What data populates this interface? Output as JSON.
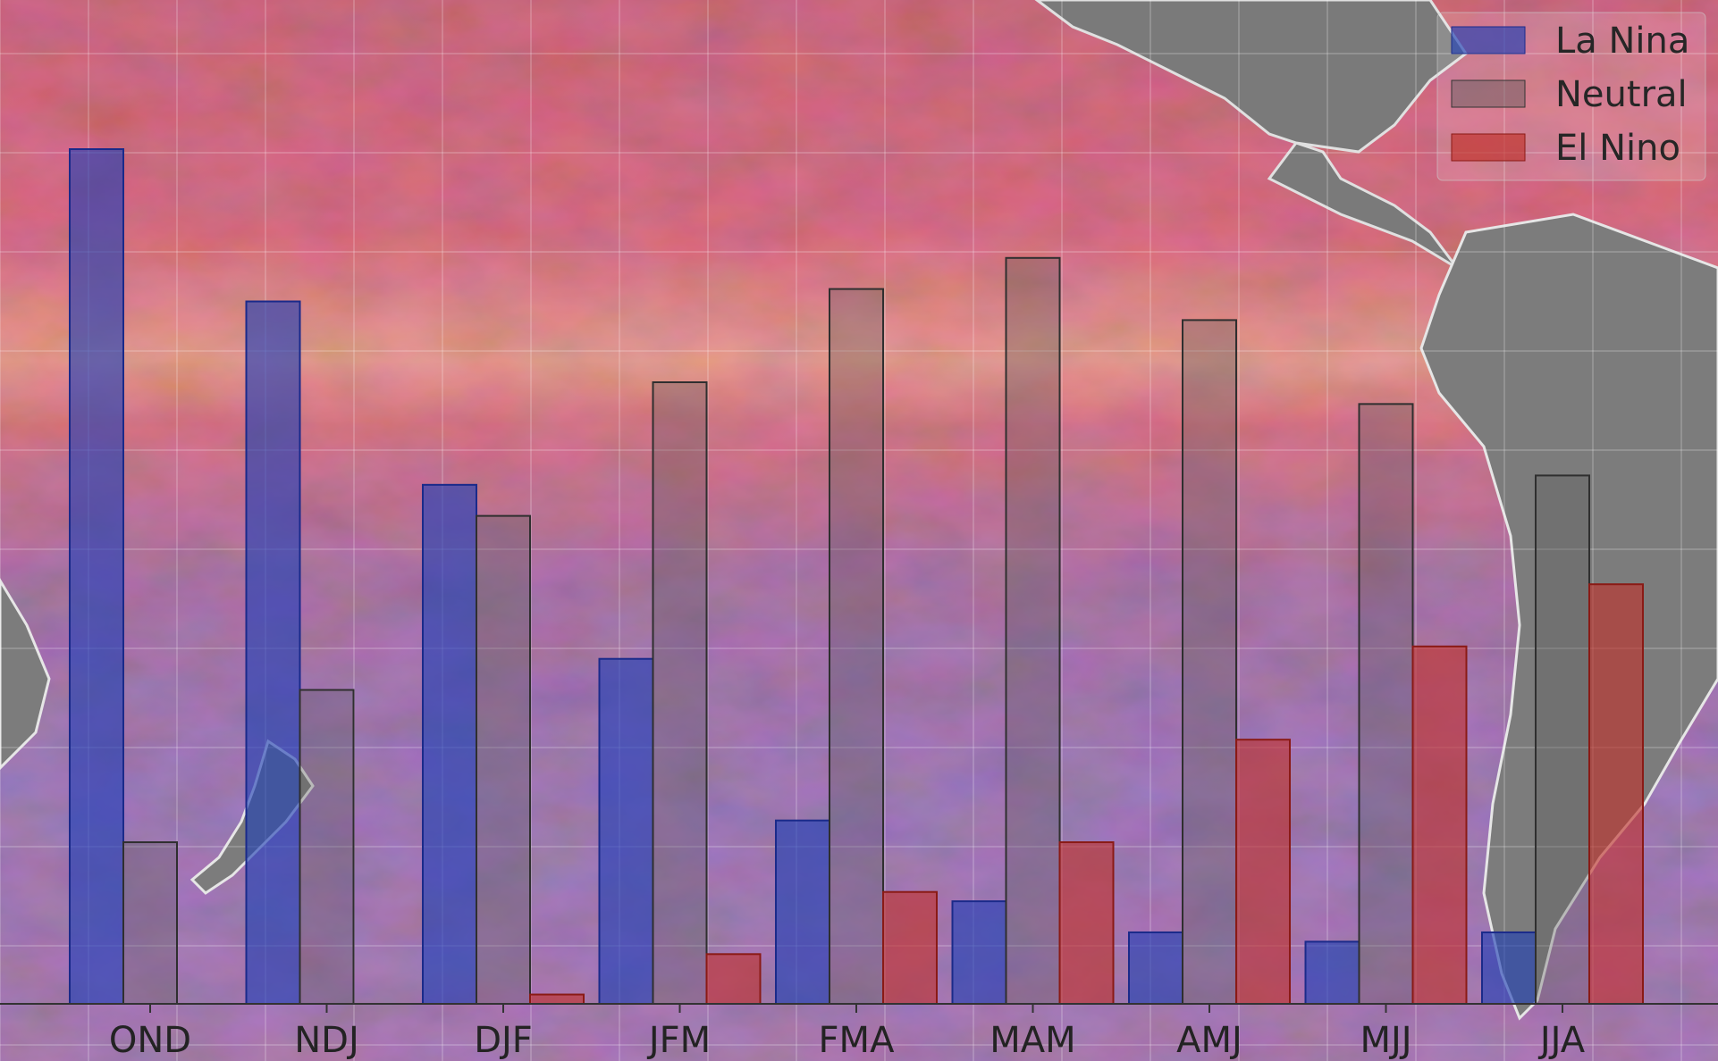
{
  "chart_data": {
    "type": "bar",
    "categories": [
      "OND",
      "NDJ",
      "DJF",
      "JFM",
      "FMA",
      "MAM",
      "AMJ",
      "MJJ",
      "JJA"
    ],
    "series": [
      {
        "name": "La Nina",
        "color": "#1f3fb4",
        "values": [
          27.5,
          22.6,
          16.7,
          11.1,
          5.9,
          3.3,
          2.3,
          2.0,
          2.3
        ]
      },
      {
        "name": "Neutral",
        "color": "#5a5a5a",
        "values": [
          5.2,
          10.1,
          15.7,
          20.0,
          23.0,
          24.0,
          22.0,
          19.3,
          17.0
        ]
      },
      {
        "name": "El Nino",
        "color": "#c0302a",
        "values": [
          0.0,
          0.0,
          0.3,
          1.6,
          3.6,
          5.2,
          8.5,
          11.5,
          13.5
        ]
      }
    ],
    "title": "",
    "xlabel": "",
    "ylabel": "",
    "ylim": [
      0,
      30
    ],
    "grid": true,
    "legend": "top-right",
    "background": "sea surface temperature map of the Pacific"
  }
}
